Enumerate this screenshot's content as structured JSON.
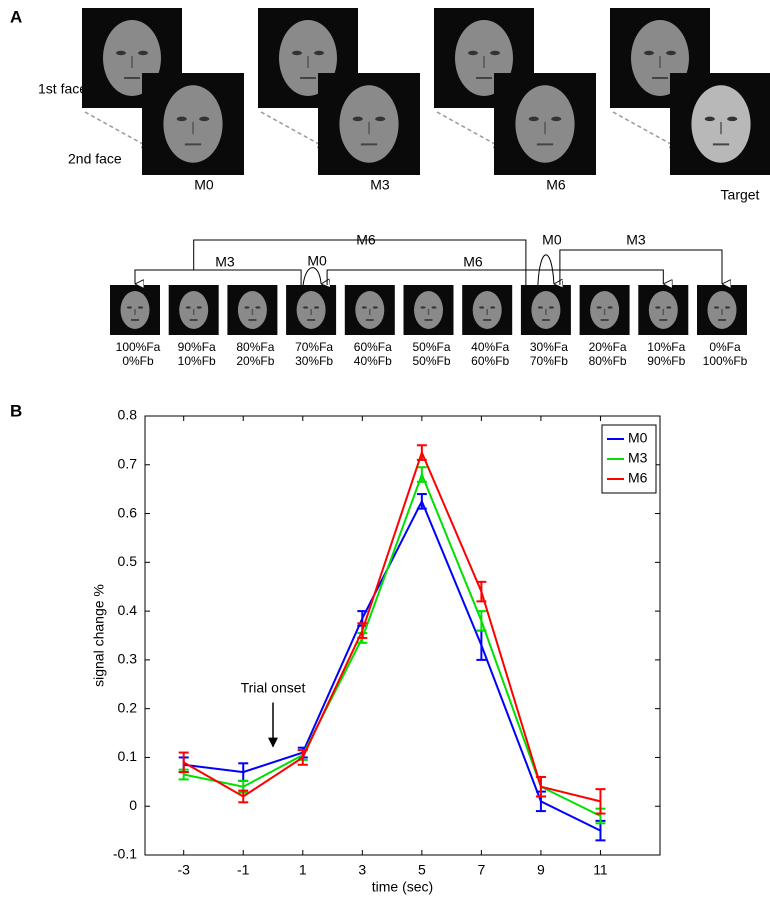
{
  "panel_a": {
    "label": "A",
    "first_face": "1st face",
    "second_face": "2nd face",
    "conditions": [
      "M0",
      "M3",
      "M6",
      "Target"
    ],
    "morphs": [
      [
        "100%Fa",
        "0%Fb"
      ],
      [
        "90%Fa",
        "10%Fb"
      ],
      [
        "80%Fa",
        "20%Fb"
      ],
      [
        "70%Fa",
        "30%Fb"
      ],
      [
        "60%Fa",
        "40%Fb"
      ],
      [
        "50%Fa",
        "50%Fb"
      ],
      [
        "40%Fa",
        "60%Fb"
      ],
      [
        "30%Fa",
        "70%Fb"
      ],
      [
        "20%Fa",
        "80%Fb"
      ],
      [
        "10%Fa",
        "90%Fb"
      ],
      [
        "0%Fa",
        "100%Fb"
      ]
    ],
    "connections": [
      "M6",
      "M3",
      "M0",
      "M6",
      "M0",
      "M3"
    ]
  },
  "panel_b": {
    "label": "B"
  },
  "chart_data": {
    "type": "line",
    "xlabel": "time (sec)",
    "ylabel": "signal change %",
    "x": [
      -3,
      -1,
      1,
      3,
      5,
      7,
      9,
      11
    ],
    "series": [
      {
        "name": "M0",
        "color": "#0000ff",
        "values": [
          0.085,
          0.07,
          0.11,
          0.385,
          0.625,
          0.33,
          0.01,
          -0.05
        ],
        "errors": [
          0.015,
          0.018,
          0.01,
          0.015,
          0.015,
          0.03,
          0.02,
          0.02
        ]
      },
      {
        "name": "M3",
        "color": "#00e000",
        "values": [
          0.065,
          0.04,
          0.105,
          0.345,
          0.68,
          0.38,
          0.04,
          -0.02
        ],
        "errors": [
          0.01,
          0.012,
          0.01,
          0.01,
          0.015,
          0.02,
          0.02,
          0.015
        ]
      },
      {
        "name": "M6",
        "color": "#ff0000",
        "values": [
          0.09,
          0.02,
          0.1,
          0.36,
          0.725,
          0.44,
          0.04,
          0.01
        ],
        "errors": [
          0.02,
          0.012,
          0.015,
          0.015,
          0.015,
          0.02,
          0.02,
          0.025
        ]
      }
    ],
    "xlim": [
      -4.3,
      13
    ],
    "ylim": [
      -0.1,
      0.8
    ],
    "xticks": [
      -3,
      -1,
      1,
      3,
      5,
      7,
      9,
      11
    ],
    "yticks": [
      -0.1,
      0,
      0.1,
      0.2,
      0.3,
      0.4,
      0.5,
      0.6,
      0.7,
      0.8
    ],
    "legend": "upper right",
    "annotations": [
      {
        "text": "Trial onset",
        "x": 0,
        "y": 0.11
      }
    ]
  }
}
